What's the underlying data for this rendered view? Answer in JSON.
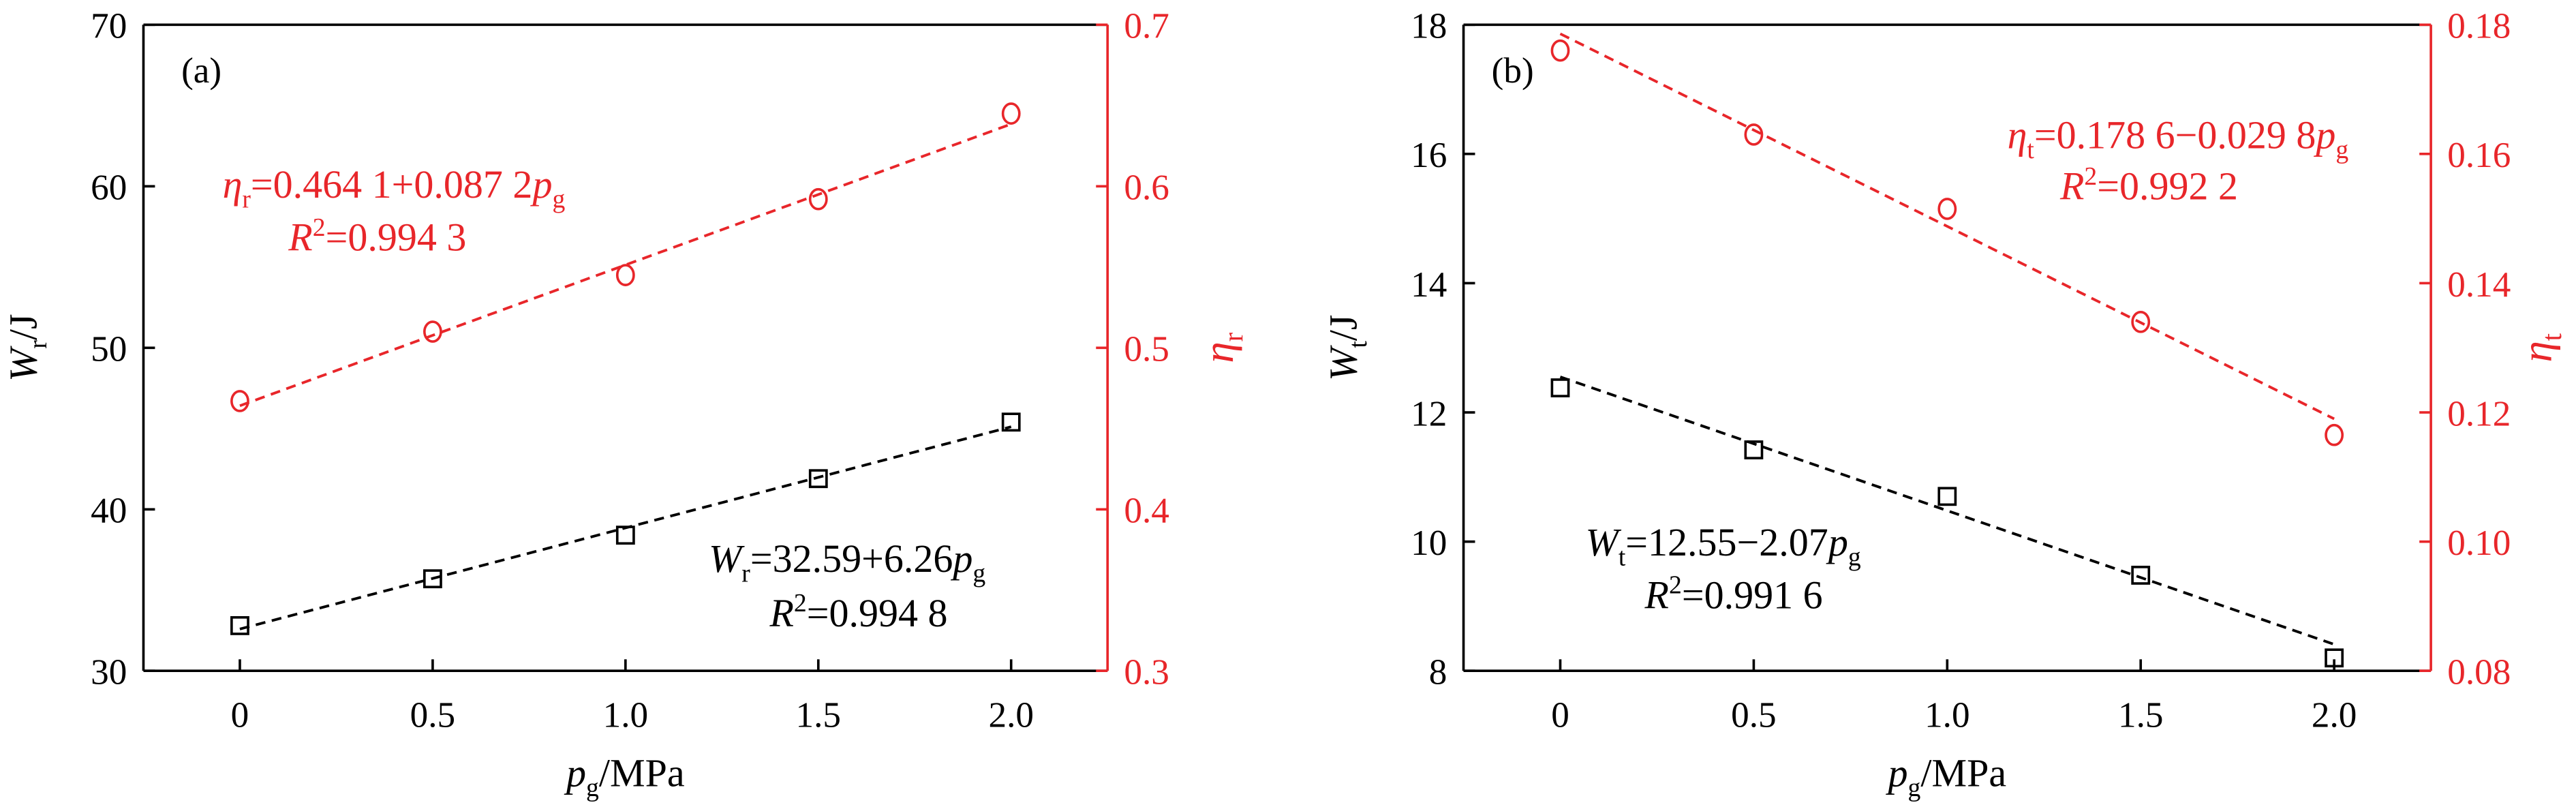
{
  "chart_data": [
    {
      "type": "scatter",
      "panel_label": "(a)",
      "x": [
        0,
        0.5,
        1,
        1.5,
        2
      ],
      "xlim": [
        -0.25,
        2.25
      ],
      "xticks": [
        0,
        0.5,
        {
          "value": 1,
          "label": "1.0"
        },
        1.5,
        {
          "value": 2,
          "label": "2.0"
        }
      ],
      "ylim": [
        30,
        70
      ],
      "yticks": [
        30,
        40,
        50,
        60,
        70
      ],
      "y2lim": [
        0.3,
        0.7
      ],
      "y2ticks": [
        0.3,
        0.4,
        0.5,
        0.6,
        0.7
      ],
      "xlabel": [
        {
          "text": "p",
          "italic": true
        },
        {
          "text": "g",
          "sub": true
        },
        {
          "text": "/MPa"
        }
      ],
      "ylabel": [
        {
          "text": "W",
          "italic": true
        },
        {
          "text": "r",
          "sub": true
        },
        {
          "text": "/J"
        }
      ],
      "y2label": [
        {
          "text": "η",
          "italic": true
        },
        {
          "text": "r",
          "sub": true
        }
      ],
      "series": [
        {
          "name": "Wr",
          "color": "#000000",
          "marker": "square",
          "values": [
            32.8,
            35.7,
            38.4,
            41.9,
            45.4
          ]
        },
        {
          "name": "ηr",
          "color": "#e8262a",
          "marker": "circle",
          "axis": "y2",
          "values": [
            0.467,
            0.51,
            0.545,
            0.592,
            0.645
          ]
        }
      ],
      "fits": [
        {
          "color": "#000000",
          "x": [
            0,
            2
          ],
          "values": [
            32.59,
            45.11
          ]
        },
        {
          "color": "#e8262a",
          "axis": "y2",
          "x": [
            0,
            2
          ],
          "values": [
            0.4641,
            0.6385
          ]
        }
      ],
      "annotations": [
        {
          "color": "#e8262a",
          "parts": [
            {
              "text": "η",
              "italic": true
            },
            {
              "text": "r",
              "sub": true
            },
            {
              "text": "=0.464 1+0.087 2"
            },
            {
              "text": "p",
              "italic": true
            },
            {
              "text": "g",
              "sub": true
            }
          ]
        },
        {
          "color": "#e8262a",
          "parts": [
            {
              "text": "R",
              "italic": true
            },
            {
              "text": "2",
              "sup": true
            },
            {
              "text": "=0.994 3"
            }
          ]
        },
        {
          "color": "#000000",
          "parts": [
            {
              "text": "W",
              "italic": true
            },
            {
              "text": "r",
              "sub": true
            },
            {
              "text": "=32.59+6.26"
            },
            {
              "text": "p",
              "italic": true
            },
            {
              "text": "g",
              "sub": true
            }
          ]
        },
        {
          "color": "#000000",
          "parts": [
            {
              "text": "R",
              "italic": true
            },
            {
              "text": "2",
              "sup": true
            },
            {
              "text": "=0.994 8"
            }
          ]
        }
      ]
    },
    {
      "type": "scatter",
      "panel_label": "(b)",
      "x": [
        0,
        0.5,
        1,
        1.5,
        2
      ],
      "xlim": [
        -0.25,
        2.25
      ],
      "xticks": [
        0,
        0.5,
        {
          "value": 1,
          "label": "1.0"
        },
        1.5,
        {
          "value": 2,
          "label": "2.0"
        }
      ],
      "ylim": [
        8,
        18
      ],
      "yticks": [
        8,
        10,
        12,
        14,
        16,
        18
      ],
      "y2lim": [
        0.08,
        0.18
      ],
      "y2ticks": [
        0.08,
        {
          "value": 0.1,
          "label": "0.10"
        },
        0.12,
        0.14,
        0.16,
        0.18
      ],
      "xlabel": [
        {
          "text": "p",
          "italic": true
        },
        {
          "text": "g",
          "sub": true
        },
        {
          "text": "/MPa"
        }
      ],
      "ylabel": [
        {
          "text": "W",
          "italic": true
        },
        {
          "text": "t",
          "sub": true
        },
        {
          "text": "/J"
        }
      ],
      "y2label": [
        {
          "text": "η",
          "italic": true
        },
        {
          "text": "t",
          "sub": true
        }
      ],
      "series": [
        {
          "name": "Wt",
          "color": "#000000",
          "marker": "square",
          "values": [
            12.38,
            11.42,
            10.7,
            9.48,
            8.2
          ]
        },
        {
          "name": "ηt",
          "color": "#e8262a",
          "marker": "circle",
          "axis": "y2",
          "values": [
            0.176,
            0.163,
            0.1515,
            0.134,
            0.1165
          ]
        }
      ],
      "fits": [
        {
          "color": "#000000",
          "x": [
            0,
            2
          ],
          "values": [
            12.55,
            8.41
          ]
        },
        {
          "color": "#e8262a",
          "axis": "y2",
          "x": [
            0,
            2
          ],
          "values": [
            0.1786,
            0.119
          ]
        }
      ],
      "annotations": [
        {
          "color": "#e8262a",
          "parts": [
            {
              "text": "η",
              "italic": true
            },
            {
              "text": "t",
              "sub": true
            },
            {
              "text": "=0.178 6−0.029 8"
            },
            {
              "text": "p",
              "italic": true
            },
            {
              "text": "g",
              "sub": true
            }
          ]
        },
        {
          "color": "#e8262a",
          "parts": [
            {
              "text": "R",
              "italic": true
            },
            {
              "text": "2",
              "sup": true
            },
            {
              "text": "=0.992 2"
            }
          ]
        },
        {
          "color": "#000000",
          "parts": [
            {
              "text": "W",
              "italic": true
            },
            {
              "text": "t",
              "sub": true
            },
            {
              "text": "=12.55−2.07"
            },
            {
              "text": "p",
              "italic": true
            },
            {
              "text": "g",
              "sub": true
            }
          ]
        },
        {
          "color": "#000000",
          "parts": [
            {
              "text": "R",
              "italic": true
            },
            {
              "text": "2",
              "sup": true
            },
            {
              "text": "=0.991 6"
            }
          ]
        }
      ]
    }
  ]
}
